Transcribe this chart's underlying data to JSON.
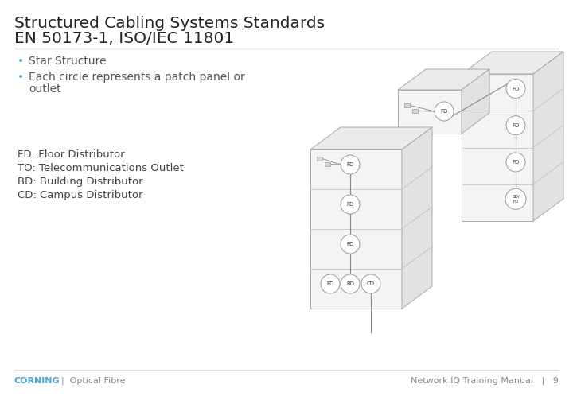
{
  "title_line1": "Structured Cabling Systems Standards",
  "title_line2": "EN 50173-1, ISO/IEC 11801",
  "bullets": [
    "Star Structure",
    "Each circle represents a patch panel or\noutlet"
  ],
  "abbrev_lines": [
    "FD: Floor Distributor",
    "TO: Telecommunications Outlet",
    "BD: Building Distributor",
    "CD: Campus Distributor"
  ],
  "footer_left_corning": "CORNING",
  "footer_left_rest": "  |  Optical Fibre",
  "footer_right": "Network IQ Training Manual   |   9",
  "title_color": "#222222",
  "bullet_color": "#555555",
  "abbrev_color": "#444444",
  "corning_color": "#4da6d4",
  "footer_color": "#888888",
  "line_color": "#aaaaaa",
  "bg_color": "#ffffff"
}
